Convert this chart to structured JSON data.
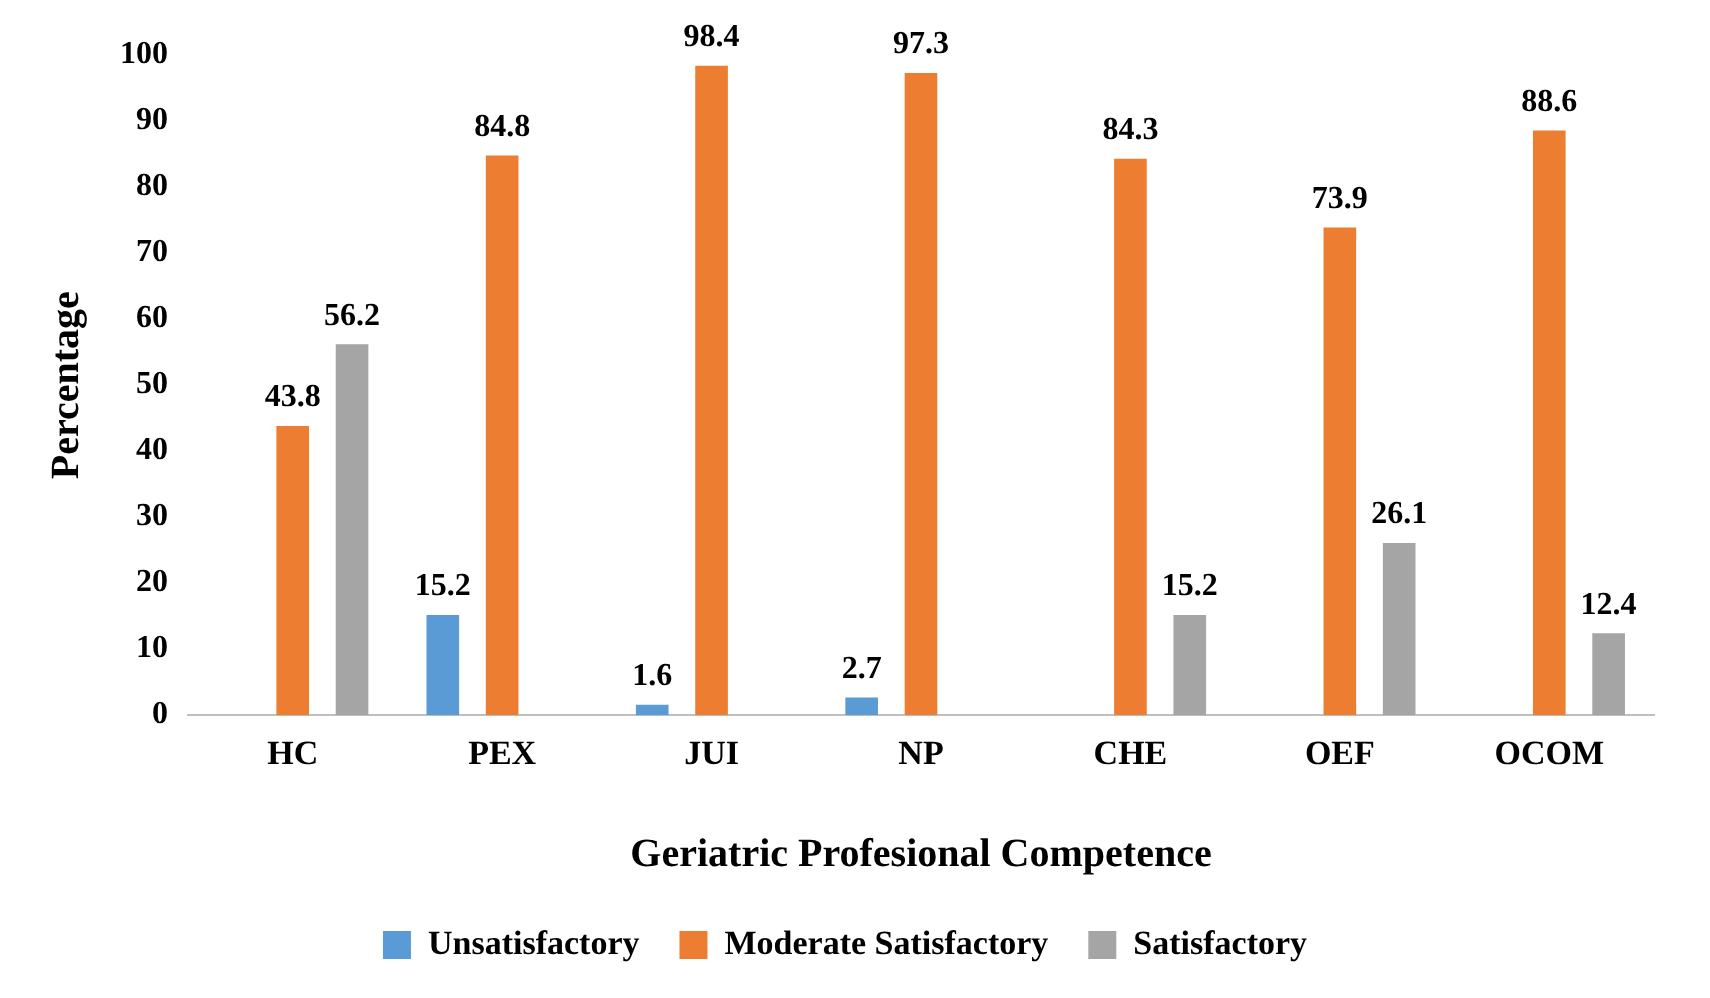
{
  "chart_data": {
    "type": "bar",
    "xlabel": "Geriatric Profesional Competence",
    "ylabel": "Percentage",
    "categories": [
      "HC",
      "PEX",
      "JUI",
      "NP",
      "CHE",
      "OEF",
      "OCOM"
    ],
    "series": [
      {
        "name": "Unsatisfactory",
        "color": "#5b9bd5",
        "values": [
          null,
          15.2,
          1.6,
          2.7,
          null,
          null,
          null
        ]
      },
      {
        "name": "Moderate Satisfactory",
        "color": "#ed7d31",
        "values": [
          43.8,
          84.8,
          98.4,
          97.3,
          84.3,
          73.9,
          88.6
        ]
      },
      {
        "name": "Satisfactory",
        "color": "#a5a5a5",
        "values": [
          56.2,
          null,
          null,
          null,
          15.2,
          26.1,
          12.4
        ]
      }
    ],
    "ylim": [
      0,
      100
    ],
    "yticks": [
      0,
      10,
      20,
      30,
      40,
      50,
      60,
      70,
      80,
      90,
      100
    ],
    "grid": false,
    "legend": "bottom",
    "data_labels": true
  }
}
